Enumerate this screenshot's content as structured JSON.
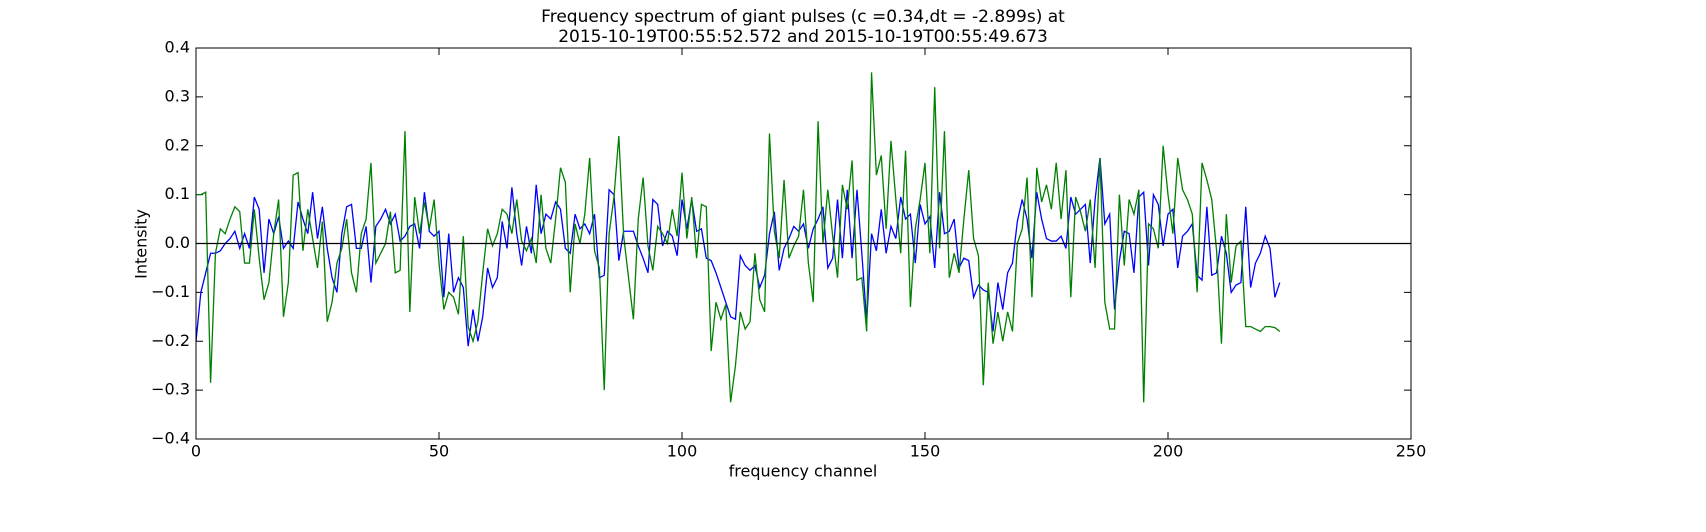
{
  "chart_data": {
    "type": "line",
    "title": "Frequency spectrum of giant pulses (c =0.34,dt = -2.899s) at",
    "subtitle": "2015-10-19T00:55:52.572 and 2015-10-19T00:55:49.673",
    "xlabel": "frequency channel",
    "ylabel": "Intensity",
    "xlim": [
      0,
      250
    ],
    "ylim": [
      -0.4,
      0.4
    ],
    "xticks": [
      0,
      50,
      100,
      150,
      200,
      250
    ],
    "yticks": [
      {
        "value": -0.4,
        "label": "−0.4"
      },
      {
        "value": -0.3,
        "label": "−0.3"
      },
      {
        "value": -0.2,
        "label": "−0.2"
      },
      {
        "value": -0.1,
        "label": "−0.1"
      },
      {
        "value": 0,
        "label": "0.0"
      },
      {
        "value": 0.1,
        "label": "0.1"
      },
      {
        "value": 0.2,
        "label": "0.2"
      },
      {
        "value": 0.3,
        "label": "0.3"
      },
      {
        "value": 0.4,
        "label": "0.4"
      }
    ],
    "axhline": 0,
    "x": [
      0,
      1,
      2,
      3,
      4,
      5,
      6,
      7,
      8,
      9,
      10,
      11,
      12,
      13,
      14,
      15,
      16,
      17,
      18,
      19,
      20,
      21,
      22,
      23,
      24,
      25,
      26,
      27,
      28,
      29,
      30,
      31,
      32,
      33,
      34,
      35,
      36,
      37,
      38,
      39,
      40,
      41,
      42,
      43,
      44,
      45,
      46,
      47,
      48,
      49,
      50,
      51,
      52,
      53,
      54,
      55,
      56,
      57,
      58,
      59,
      60,
      61,
      62,
      63,
      64,
      65,
      66,
      67,
      68,
      69,
      70,
      71,
      72,
      73,
      74,
      75,
      76,
      77,
      78,
      79,
      80,
      81,
      82,
      83,
      84,
      85,
      86,
      87,
      88,
      89,
      90,
      91,
      92,
      93,
      94,
      95,
      96,
      97,
      98,
      99,
      100,
      101,
      102,
      103,
      104,
      105,
      106,
      107,
      108,
      109,
      110,
      111,
      112,
      113,
      114,
      115,
      116,
      117,
      118,
      119,
      120,
      121,
      122,
      123,
      124,
      125,
      126,
      127,
      128,
      129,
      130,
      131,
      132,
      133,
      134,
      135,
      136,
      137,
      138,
      139,
      140,
      141,
      142,
      143,
      144,
      145,
      146,
      147,
      148,
      149,
      150,
      151,
      152,
      153,
      154,
      155,
      156,
      157,
      158,
      159,
      160,
      161,
      162,
      163,
      164,
      165,
      166,
      167,
      168,
      169,
      170,
      171,
      172,
      173,
      174,
      175,
      176,
      177,
      178,
      179,
      180,
      181,
      182,
      183,
      184,
      185,
      186,
      187,
      188,
      189,
      190,
      191,
      192,
      193,
      194,
      195,
      196,
      197,
      198,
      199,
      200,
      201,
      202,
      203,
      204,
      205,
      206,
      207,
      208,
      209,
      210,
      211,
      212,
      213,
      214,
      215,
      216,
      217,
      218,
      219,
      220,
      221,
      222,
      223
    ],
    "series": [
      {
        "color": "#0000ff",
        "values": [
          -0.2,
          -0.1,
          -0.06,
          -0.02,
          -0.02,
          -0.015,
          0,
          0.01,
          0.025,
          -0.01,
          0.02,
          -0.01,
          0.095,
          0.07,
          -0.06,
          0.05,
          0.02,
          0.055,
          -0.01,
          0.005,
          -0.01,
          0.085,
          0.05,
          0.02,
          0.105,
          0.01,
          0.075,
          -0.01,
          -0.07,
          -0.1,
          0.02,
          0.075,
          0.08,
          -0.01,
          -0.01,
          0.035,
          -0.08,
          0.035,
          0.05,
          0.07,
          0.04,
          0.06,
          0.005,
          0.015,
          0.035,
          0.04,
          -0.01,
          0.105,
          0.025,
          0.015,
          0.025,
          -0.11,
          0.02,
          -0.1,
          -0.07,
          -0.09,
          -0.21,
          -0.135,
          -0.2,
          -0.15,
          -0.05,
          -0.09,
          -0.07,
          0.045,
          -0.01,
          0.115,
          0.02,
          -0.045,
          0.035,
          -0.02,
          0.12,
          0.02,
          0.06,
          0.05,
          0.085,
          0.07,
          -0.01,
          -0.02,
          0.06,
          0.03,
          0.04,
          0.02,
          0.06,
          -0.07,
          -0.065,
          0.11,
          0.1,
          -0.035,
          0.025,
          0.025,
          0.025,
          -0.005,
          -0.03,
          -0.06,
          0.09,
          0.08,
          -0.005,
          0.025,
          0.015,
          -0.025,
          0.09,
          0.03,
          0.09,
          0.025,
          0.03,
          -0.03,
          -0.035,
          -0.06,
          -0.09,
          -0.12,
          -0.15,
          -0.155,
          -0.025,
          -0.045,
          -0.055,
          -0.045,
          -0.09,
          -0.065,
          0.02,
          0.065,
          -0.055,
          -0.01,
          0.01,
          0.035,
          0.025,
          0.04,
          -0.01,
          0.03,
          0.05,
          0.075,
          -0.05,
          -0.03,
          0.09,
          -0.03,
          0.11,
          -0.03,
          0.11,
          -0.02,
          -0.16,
          0.02,
          -0.015,
          0.07,
          -0.02,
          0.035,
          0.01,
          0.095,
          0.05,
          0.06,
          -0.04,
          0.08,
          0.04,
          0.055,
          -0.05,
          0.105,
          0.02,
          0.025,
          0.05,
          -0.05,
          -0.03,
          -0.035,
          -0.11,
          -0.085,
          -0.095,
          -0.1,
          -0.18,
          -0.08,
          -0.135,
          -0.06,
          -0.04,
          0.045,
          0.09,
          0.05,
          -0.03,
          0.105,
          0.05,
          0.01,
          0.005,
          0.005,
          0.015,
          -0.01,
          0.095,
          0.06,
          0.07,
          0.08,
          -0.04,
          0.09,
          0.175,
          0.04,
          0.06,
          -0.135,
          -0.035,
          0.025,
          0.02,
          -0.06,
          0.095,
          0.105,
          -0.045,
          0.1,
          0.08,
          -0.005,
          0.06,
          0.07,
          -0.05,
          0.015,
          0.025,
          0.04,
          -0.065,
          -0.075,
          0.075,
          -0.065,
          -0.06,
          0.015,
          -0.02,
          -0.1,
          -0.085,
          -0.08,
          0.075,
          -0.09,
          -0.04,
          -0.02,
          0.015,
          -0.01,
          -0.11,
          -0.08
        ]
      },
      {
        "color": "#008000",
        "values": [
          0.1,
          0.1,
          0.105,
          -0.285,
          -0.02,
          0.03,
          0.02,
          0.05,
          0.075,
          0.065,
          -0.04,
          -0.04,
          0.07,
          -0.03,
          -0.115,
          -0.08,
          0.02,
          0.09,
          -0.15,
          -0.08,
          0.14,
          0.145,
          -0.015,
          0.07,
          0.01,
          -0.05,
          0.045,
          -0.16,
          -0.12,
          -0.04,
          -0.01,
          0.05,
          -0.06,
          -0.1,
          0.02,
          0.05,
          0.165,
          -0.04,
          -0.02,
          0,
          0.065,
          -0.06,
          -0.055,
          0.23,
          -0.14,
          0.095,
          0.02,
          0.085,
          0.03,
          0.09,
          -0.04,
          -0.135,
          -0.1,
          -0.11,
          -0.145,
          0.015,
          -0.17,
          -0.2,
          -0.16,
          -0.06,
          0.03,
          -0.005,
          0.02,
          0.07,
          0.06,
          0.02,
          0.09,
          0.005,
          -0.015,
          0.01,
          -0.04,
          0.1,
          -0.01,
          -0.04,
          0.05,
          0.155,
          0.125,
          -0.1,
          0.04,
          0,
          0.06,
          0.175,
          -0.015,
          -0.05,
          -0.3,
          0.02,
          0.095,
          0.22,
          0.015,
          -0.07,
          -0.155,
          0.05,
          0.135,
          -0.005,
          -0.055,
          0.035,
          0.02,
          0,
          0.07,
          0.015,
          0.145,
          0.01,
          0.095,
          -0.03,
          0.08,
          0.075,
          -0.22,
          -0.12,
          -0.155,
          -0.125,
          -0.325,
          -0.25,
          -0.14,
          -0.175,
          -0.16,
          -0.02,
          -0.115,
          -0.14,
          0.225,
          0.025,
          -0.03,
          0.13,
          -0.03,
          -0.005,
          0.015,
          0.11,
          -0.04,
          -0.12,
          0.25,
          0,
          0.11,
          0.015,
          -0.07,
          0.12,
          0.07,
          0.17,
          -0.075,
          -0.07,
          -0.18,
          0.35,
          0.14,
          0.18,
          0.03,
          0.21,
          0.09,
          -0.02,
          0.19,
          -0.13,
          0.03,
          0.09,
          0.165,
          -0.02,
          0.32,
          -0.01,
          0.23,
          -0.07,
          -0.02,
          -0.06,
          0.05,
          0.15,
          0.01,
          -0.025,
          -0.29,
          -0.08,
          -0.205,
          -0.14,
          -0.2,
          -0.14,
          -0.18,
          0,
          0.03,
          0.135,
          -0.11,
          0.155,
          0.085,
          0.12,
          0.07,
          0.165,
          0.05,
          0.15,
          -0.11,
          0.095,
          0.065,
          0.025,
          0.09,
          -0.05,
          0.175,
          -0.12,
          -0.175,
          -0.175,
          0.1,
          -0.045,
          0.09,
          0.06,
          0.11,
          -0.325,
          0.04,
          0.03,
          -0.01,
          0.2,
          0.1,
          0.02,
          0.175,
          0.11,
          0.09,
          0.06,
          -0.1,
          0.165,
          0.13,
          0.09,
          -0.015,
          -0.205,
          0.06,
          -0.08,
          -0.005,
          0.005,
          -0.17,
          -0.17,
          -0.175,
          -0.18,
          -0.17,
          -0.17,
          -0.172,
          -0.18
        ]
      }
    ]
  }
}
